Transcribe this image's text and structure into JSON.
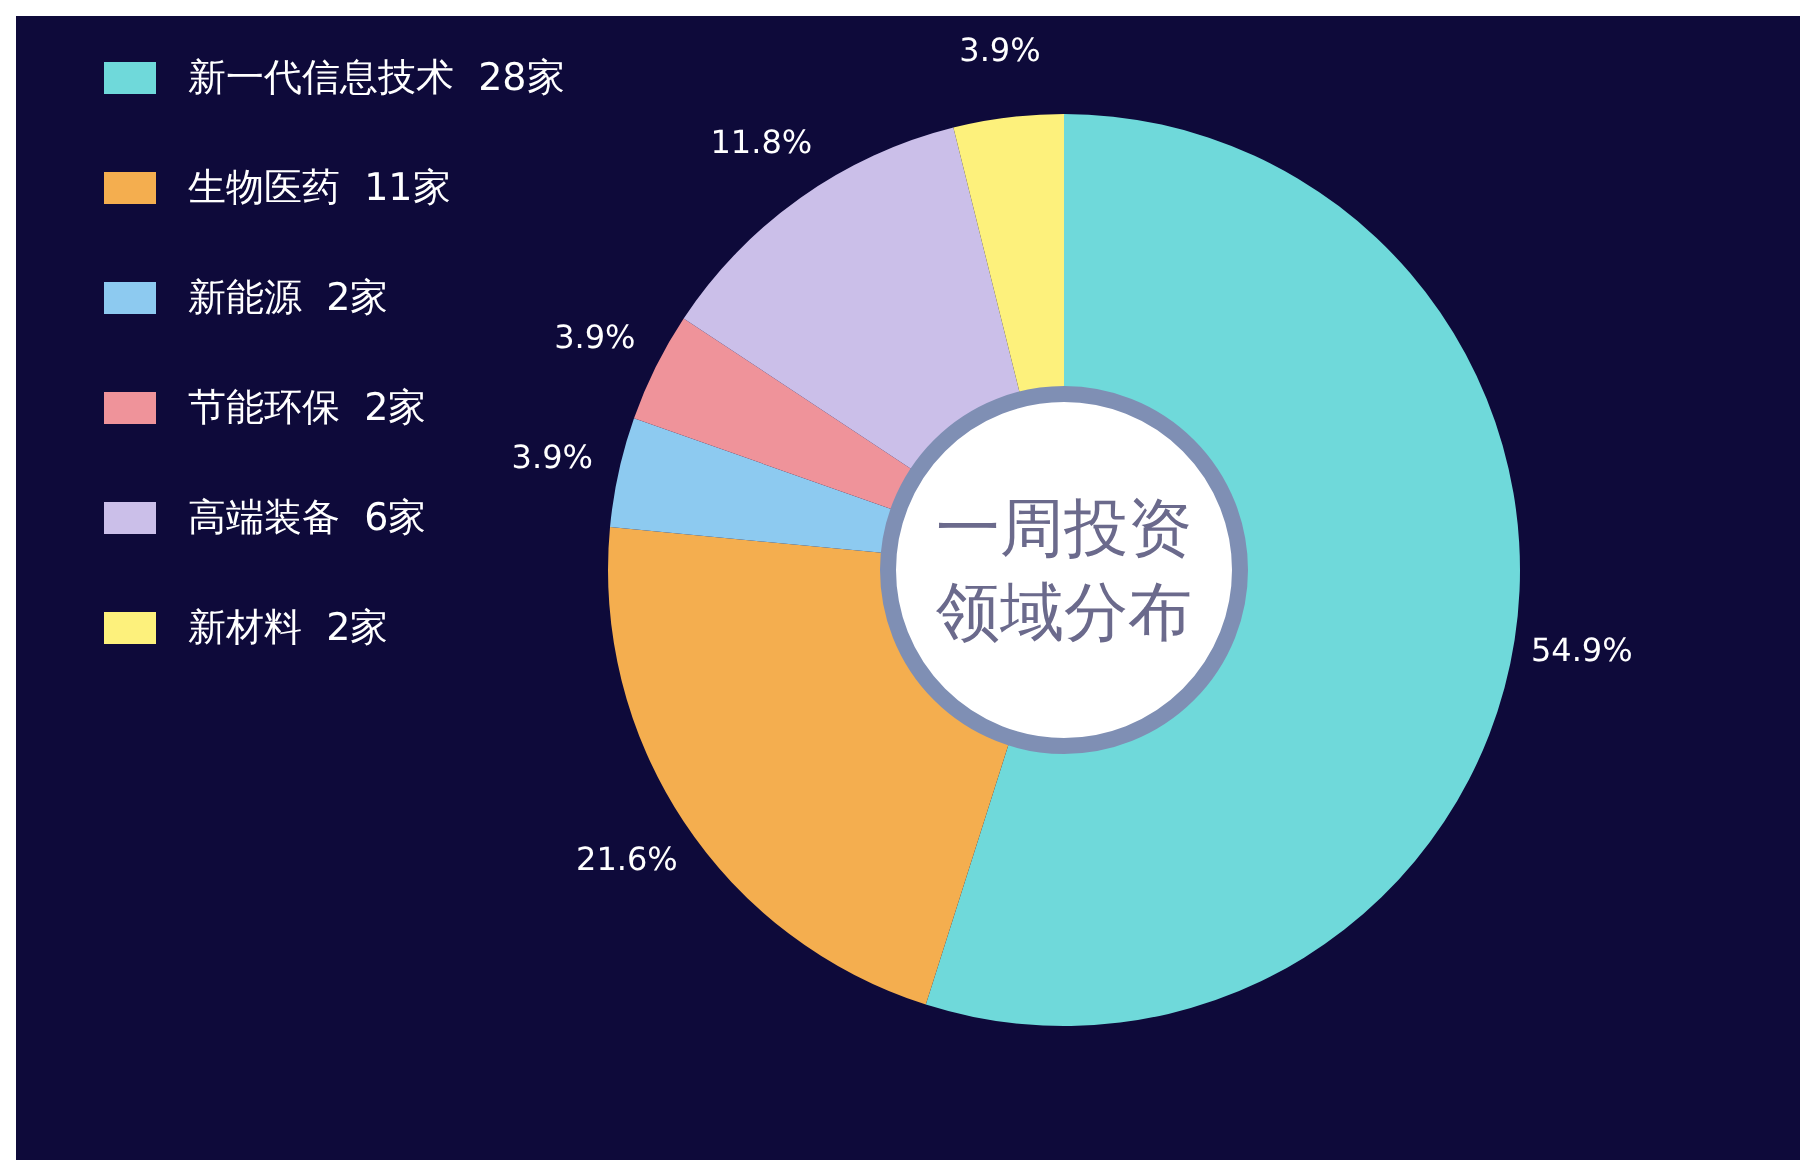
{
  "chart_data": {
    "type": "donut",
    "title": "一周投资领域分布",
    "categories": [
      "新一代信息技术  28家",
      "生物医药  11家",
      "新能源  2家",
      "节能环保  2家",
      "高端装备  6家",
      "新材料  2家"
    ],
    "values": [
      54.9,
      21.6,
      3.9,
      3.9,
      11.8,
      3.9
    ],
    "value_labels": [
      "54.9%",
      "21.6%",
      "3.9%",
      "3.9%",
      "11.8%",
      "3.9%"
    ],
    "colors": [
      "#6fd9da",
      "#f4ae4f",
      "#8dcaf0",
      "#ef939a",
      "#cbbfe9",
      "#fdf17c"
    ],
    "legend": "top left"
  }
}
